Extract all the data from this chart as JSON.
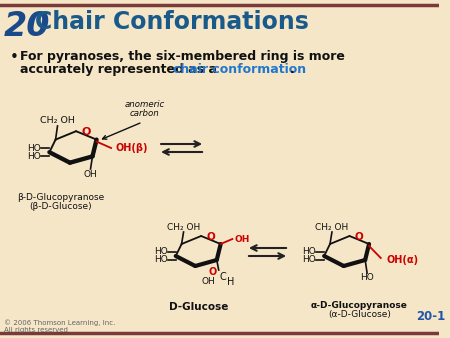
{
  "bg_color": "#f5e6c8",
  "border_color": "#7a3a3a",
  "title_num": "20",
  "title_num_color": "#1a4a8a",
  "title_text": "Chair Conformations",
  "title_color": "#1a5a8a",
  "bullet_color": "#111111",
  "highlight_color": "#2277cc",
  "footer_text": "© 2006 Thomson Learning, Inc.\nAll rights reserved",
  "footer_color": "#666666",
  "slide_num": "20-1",
  "slide_num_color": "#2255aa",
  "red": "#cc0000",
  "black": "#111111",
  "lfs": 6.5,
  "rlw": 2.5
}
